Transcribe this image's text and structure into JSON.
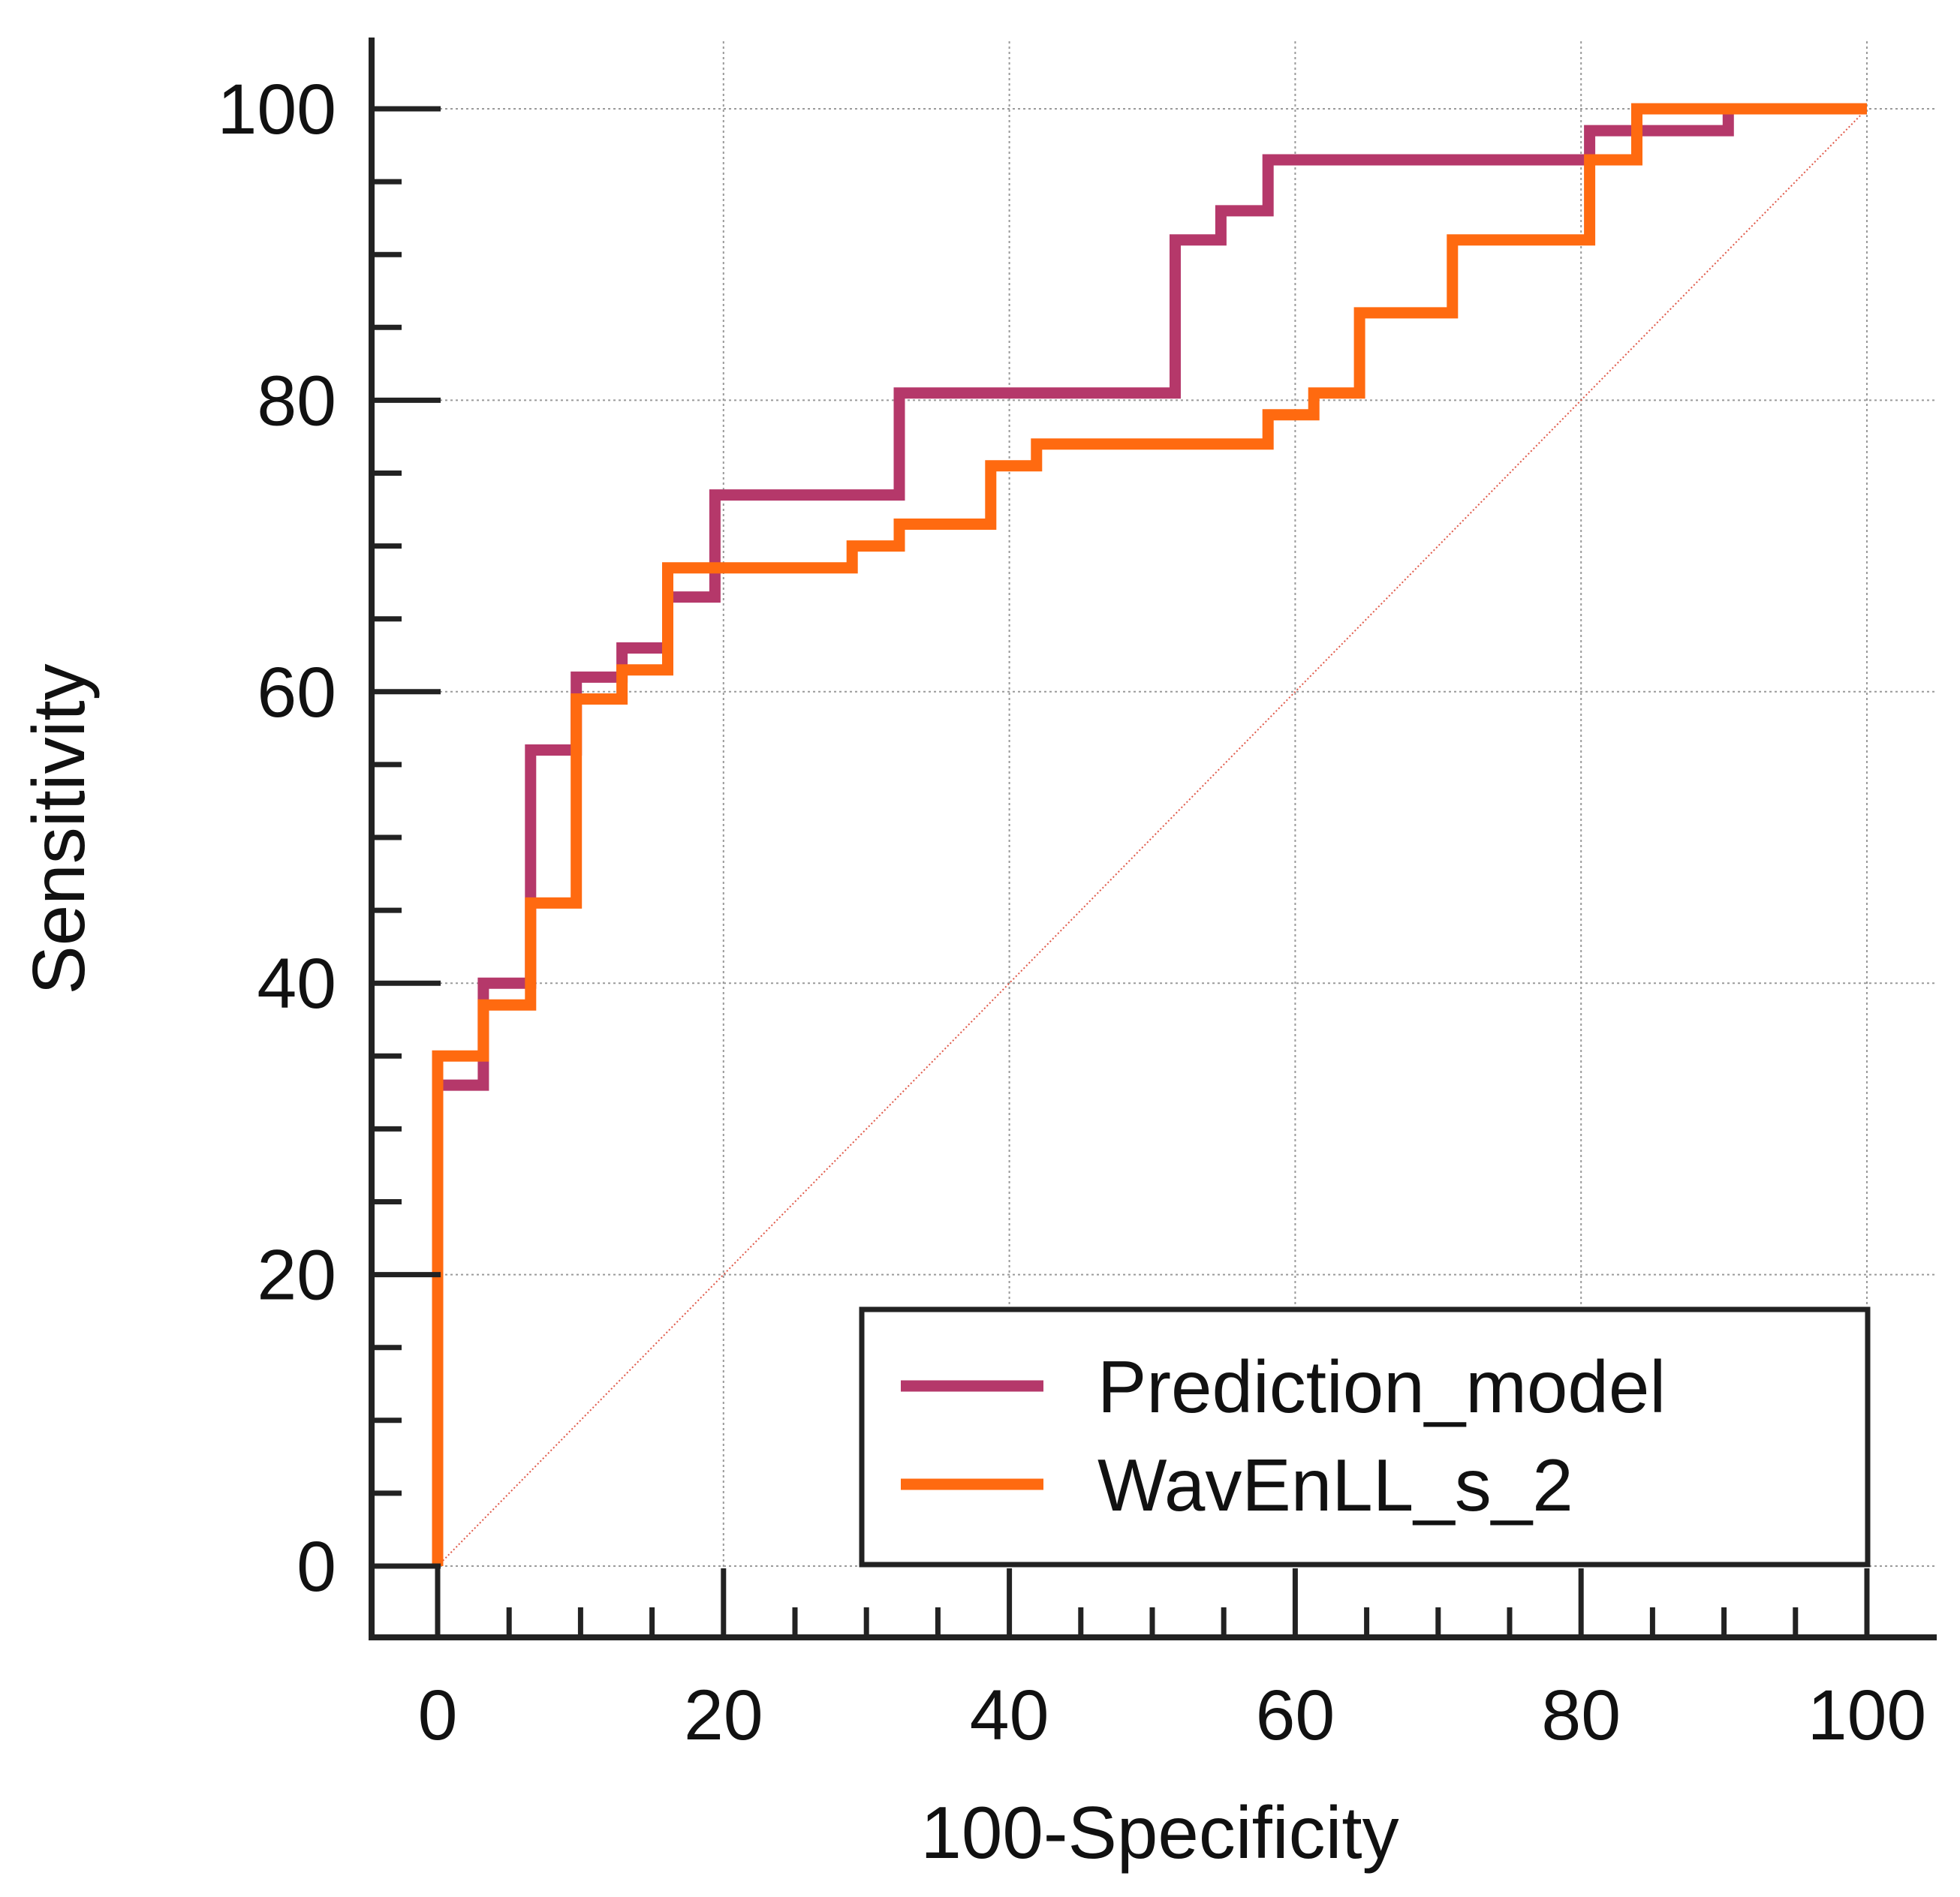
{
  "chart_data": {
    "type": "line",
    "title": "",
    "xlabel": "100-Specificity",
    "ylabel": "Sensitivity",
    "xlim": [
      0,
      100
    ],
    "ylim": [
      0,
      100
    ],
    "grid": true,
    "x_major_ticks": [
      "0",
      "20",
      "40",
      "60",
      "80",
      "100"
    ],
    "y_major_ticks": [
      "0",
      "20",
      "40",
      "60",
      "80",
      "100"
    ],
    "legend_position": "bottom-right",
    "reference_line": {
      "from": [
        0,
        0
      ],
      "to": [
        100,
        100
      ],
      "color": "#e05a4a",
      "style": "dotted"
    },
    "series": [
      {
        "name": "Prediction_model",
        "color": "#b5386a",
        "points": [
          [
            0,
            0
          ],
          [
            0,
            33
          ],
          [
            3.2,
            33
          ],
          [
            3.2,
            40
          ],
          [
            6.5,
            40
          ],
          [
            6.5,
            56
          ],
          [
            9.7,
            56
          ],
          [
            9.7,
            61
          ],
          [
            12.9,
            61
          ],
          [
            12.9,
            63
          ],
          [
            16.1,
            63
          ],
          [
            16.1,
            66.5
          ],
          [
            19.4,
            66.5
          ],
          [
            19.4,
            73.5
          ],
          [
            32.3,
            73.5
          ],
          [
            32.3,
            80.5
          ],
          [
            51.6,
            80.5
          ],
          [
            51.6,
            91
          ],
          [
            54.8,
            91
          ],
          [
            54.8,
            93
          ],
          [
            58.1,
            93
          ],
          [
            58.1,
            96.5
          ],
          [
            80.6,
            96.5
          ],
          [
            80.6,
            98.5
          ],
          [
            90.3,
            98.5
          ],
          [
            90.3,
            100
          ],
          [
            100,
            100
          ]
        ]
      },
      {
        "name": "WavEnLL_s_2",
        "color": "#ff6a10",
        "points": [
          [
            0,
            0
          ],
          [
            0,
            35
          ],
          [
            3.2,
            35
          ],
          [
            3.2,
            38.5
          ],
          [
            6.5,
            38.5
          ],
          [
            6.5,
            45.5
          ],
          [
            9.7,
            45.5
          ],
          [
            9.7,
            59.5
          ],
          [
            12.9,
            59.5
          ],
          [
            12.9,
            61.5
          ],
          [
            16.1,
            61.5
          ],
          [
            16.1,
            68.5
          ],
          [
            29.0,
            68.5
          ],
          [
            29.0,
            70
          ],
          [
            32.3,
            70
          ],
          [
            32.3,
            71.5
          ],
          [
            38.7,
            71.5
          ],
          [
            38.7,
            75.5
          ],
          [
            41.9,
            75.5
          ],
          [
            41.9,
            77
          ],
          [
            58.1,
            77
          ],
          [
            58.1,
            79
          ],
          [
            61.3,
            79
          ],
          [
            61.3,
            80.5
          ],
          [
            64.5,
            80.5
          ],
          [
            64.5,
            86
          ],
          [
            71.0,
            86
          ],
          [
            71.0,
            91
          ],
          [
            80.6,
            91
          ],
          [
            80.6,
            96.5
          ],
          [
            83.9,
            96.5
          ],
          [
            83.9,
            100
          ],
          [
            100,
            100
          ]
        ]
      }
    ]
  }
}
